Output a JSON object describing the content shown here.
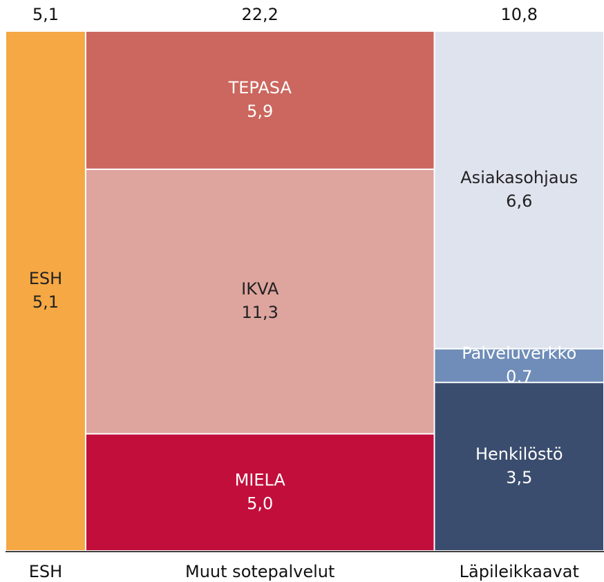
{
  "chart_data": {
    "type": "marimekko",
    "columns": [
      {
        "name": "ESH",
        "total": 5.1,
        "total_label": "5,1",
        "segments": [
          {
            "name": "ESH",
            "value": 5.1,
            "value_label": "5,1",
            "color": "#f5a843"
          }
        ]
      },
      {
        "name": "Muut sotepalvelut",
        "total": 22.2,
        "total_label": "22,2",
        "segments": [
          {
            "name": "TEPASA",
            "value": 5.9,
            "value_label": "5,9",
            "color": "#cb675e"
          },
          {
            "name": "IKVA",
            "value": 11.3,
            "value_label": "11,3",
            "color": "#dea49e"
          },
          {
            "name": "MIELA",
            "value": 5.0,
            "value_label": "5,0",
            "color": "#c20e3b"
          }
        ]
      },
      {
        "name": "Läpileikkaavat",
        "total": 10.8,
        "total_label": "10,8",
        "segments": [
          {
            "name": "Asiakasohjaus",
            "value": 6.6,
            "value_label": "6,6",
            "color": "#dfe3ee"
          },
          {
            "name": "Palveluverkko",
            "value": 0.7,
            "value_label": "0,7",
            "color": "#6f8db8"
          },
          {
            "name": "Henkilöstö",
            "value": 3.5,
            "value_label": "3,5",
            "color": "#3a4d6e"
          }
        ]
      }
    ]
  }
}
